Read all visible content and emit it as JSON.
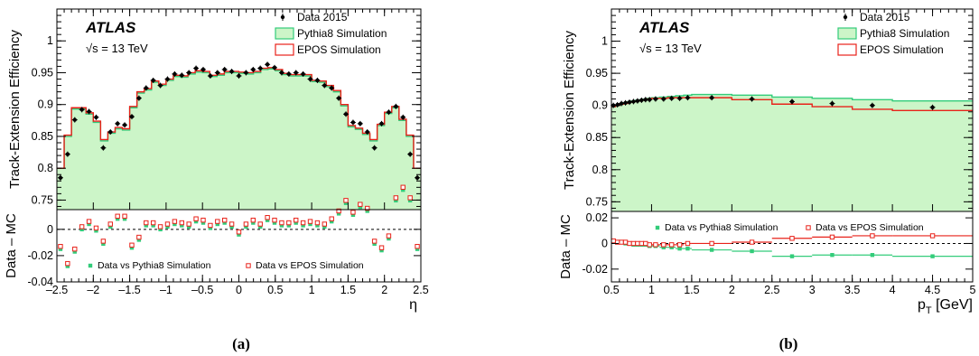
{
  "colors": {
    "pythia_fill": "#ccf5c8",
    "pythia_line": "#33cc7a",
    "epos_line": "#e8221a",
    "data": "#000000"
  },
  "chart_data": [
    {
      "type": "line",
      "caption": "(a)",
      "atlas": "ATLAS",
      "energy": "√s = 13 TeV",
      "ylabel": "Track-Extension Efficiency",
      "ratio_ylabel": "Data – MC",
      "xlabel": "η",
      "xlim": [
        -2.5,
        2.5
      ],
      "ylim": [
        0.735,
        1.05
      ],
      "ratio_ylim": [
        -0.04,
        0.015
      ],
      "xticks": [
        "-2.5",
        "-2",
        "-1.5",
        "-1",
        "-0.5",
        "0",
        "0.5",
        "1",
        "1.5",
        "2",
        "2.5"
      ],
      "yticks": [
        "0.75",
        "0.8",
        "0.85",
        "0.9",
        "0.95",
        "1"
      ],
      "ratio_yticks": [
        "-0.04",
        "-0.02",
        "0"
      ],
      "legend": {
        "data": "Data 2015",
        "pythia": "Pythia8 Simulation",
        "epos": "EPOS Simulation"
      },
      "ratio_legend": {
        "pythia": "Data vs Pythia8 Simulation",
        "epos": "Data vs EPOS Simulation"
      },
      "bin_edges": [
        -2.5,
        -2.4,
        -2.3,
        -2.2,
        -2.1,
        -2.0,
        -1.9,
        -1.8,
        -1.7,
        -1.6,
        -1.5,
        -1.4,
        -1.3,
        -1.2,
        -1.1,
        -1.0,
        -0.9,
        -0.8,
        -0.7,
        -0.6,
        -0.5,
        -0.4,
        -0.3,
        -0.2,
        -0.1,
        0.0,
        0.1,
        0.2,
        0.3,
        0.4,
        0.5,
        0.6,
        0.7,
        0.8,
        0.9,
        1.0,
        1.1,
        1.2,
        1.3,
        1.4,
        1.5,
        1.6,
        1.7,
        1.8,
        1.9,
        2.0,
        2.1,
        2.2,
        2.3,
        2.4,
        2.5
      ],
      "data": [
        0.785,
        0.822,
        0.876,
        0.892,
        0.889,
        0.88,
        0.832,
        0.857,
        0.87,
        0.868,
        0.881,
        0.91,
        0.926,
        0.938,
        0.93,
        0.94,
        0.948,
        0.946,
        0.95,
        0.957,
        0.955,
        0.945,
        0.95,
        0.955,
        0.952,
        0.945,
        0.95,
        0.955,
        0.957,
        0.963,
        0.958,
        0.95,
        0.948,
        0.95,
        0.948,
        0.94,
        0.938,
        0.93,
        0.926,
        0.91,
        0.885,
        0.872,
        0.87,
        0.857,
        0.832,
        0.87,
        0.888,
        0.897,
        0.88,
        0.822,
        0.785
      ],
      "pythia": [
        0.8,
        0.85,
        0.893,
        0.893,
        0.885,
        0.872,
        0.843,
        0.855,
        0.862,
        0.86,
        0.895,
        0.918,
        0.923,
        0.935,
        0.93,
        0.938,
        0.944,
        0.943,
        0.948,
        0.951,
        0.95,
        0.944,
        0.946,
        0.95,
        0.95,
        0.949,
        0.948,
        0.95,
        0.955,
        0.956,
        0.953,
        0.947,
        0.945,
        0.945,
        0.945,
        0.936,
        0.935,
        0.928,
        0.92,
        0.898,
        0.865,
        0.861,
        0.853,
        0.843,
        0.867,
        0.886,
        0.895,
        0.875,
        0.85,
        0.8
      ],
      "epos": [
        0.8,
        0.852,
        0.895,
        0.895,
        0.887,
        0.874,
        0.845,
        0.857,
        0.864,
        0.862,
        0.897,
        0.92,
        0.925,
        0.937,
        0.932,
        0.94,
        0.946,
        0.945,
        0.95,
        0.953,
        0.952,
        0.946,
        0.948,
        0.952,
        0.952,
        0.951,
        0.95,
        0.952,
        0.957,
        0.958,
        0.955,
        0.949,
        0.947,
        0.947,
        0.947,
        0.938,
        0.937,
        0.93,
        0.922,
        0.9,
        0.867,
        0.863,
        0.855,
        0.845,
        0.869,
        0.888,
        0.897,
        0.877,
        0.852,
        0.8
      ],
      "ratio_pythia": [
        -0.015,
        -0.028,
        -0.017,
        0.0,
        0.004,
        -0.001,
        -0.011,
        0.002,
        0.008,
        0.008,
        -0.014,
        -0.008,
        0.003,
        0.003,
        0.0,
        0.002,
        0.004,
        0.003,
        0.002,
        0.006,
        0.005,
        0.001,
        0.004,
        0.005,
        0.002,
        -0.004,
        0.002,
        0.005,
        0.002,
        0.007,
        0.005,
        0.003,
        0.003,
        0.005,
        0.003,
        0.004,
        0.003,
        0.002,
        0.006,
        0.012,
        0.02,
        0.011,
        0.017,
        0.014,
        -0.011,
        -0.016,
        -0.007,
        0.022,
        0.03,
        0.022,
        -0.015
      ],
      "ratio_epos": [
        -0.013,
        -0.026,
        -0.015,
        0.002,
        0.006,
        0.001,
        -0.009,
        0.004,
        0.01,
        0.01,
        -0.012,
        -0.006,
        0.005,
        0.005,
        0.002,
        0.004,
        0.006,
        0.005,
        0.004,
        0.008,
        0.007,
        0.003,
        0.006,
        0.007,
        0.004,
        -0.002,
        0.004,
        0.007,
        0.004,
        0.009,
        0.007,
        0.005,
        0.005,
        0.007,
        0.005,
        0.006,
        0.005,
        0.004,
        0.008,
        0.014,
        0.022,
        0.013,
        0.019,
        0.016,
        -0.009,
        -0.014,
        -0.005,
        0.024,
        0.032,
        0.024,
        -0.013
      ]
    },
    {
      "type": "line",
      "caption": "(b)",
      "atlas": "ATLAS",
      "energy": "√s = 13 TeV",
      "ylabel": "Track-Extension Efficiency",
      "ratio_ylabel": "Data – MC",
      "xlabel": "p",
      "xlabel_sub": "T",
      "xlabel_unit": " [GeV]",
      "xlim": [
        0.5,
        5
      ],
      "ylim": [
        0.735,
        1.05
      ],
      "ratio_ylim": [
        -0.03,
        0.025
      ],
      "xticks": [
        "0.5",
        "1",
        "1.5",
        "2",
        "2.5",
        "3",
        "3.5",
        "4",
        "4.5",
        "5"
      ],
      "yticks": [
        "0.75",
        "0.8",
        "0.85",
        "0.9",
        "0.95",
        "1"
      ],
      "ratio_yticks": [
        "-0.02",
        "0",
        "0.02"
      ],
      "legend": {
        "data": "Data 2015",
        "pythia": "Pythia8 Simulation",
        "epos": "EPOS Simulation"
      },
      "ratio_legend": {
        "pythia": "Data vs Pythia8 Simulation",
        "epos": "Data vs EPOS Simulation"
      },
      "bin_edges": [
        0.5,
        0.55,
        0.6,
        0.65,
        0.7,
        0.75,
        0.8,
        0.85,
        0.9,
        0.95,
        1.0,
        1.1,
        1.2,
        1.3,
        1.4,
        1.5,
        2.0,
        2.5,
        3.0,
        3.5,
        4.0,
        5.0
      ],
      "data": [
        0.9,
        0.901,
        0.903,
        0.904,
        0.905,
        0.906,
        0.907,
        0.908,
        0.909,
        0.909,
        0.91,
        0.91,
        0.911,
        0.911,
        0.912,
        0.912,
        0.91,
        0.906,
        0.903,
        0.9,
        0.897
      ],
      "pythia": [
        0.898,
        0.9,
        0.902,
        0.904,
        0.906,
        0.907,
        0.908,
        0.909,
        0.91,
        0.911,
        0.912,
        0.913,
        0.914,
        0.915,
        0.916,
        0.917,
        0.916,
        0.913,
        0.911,
        0.909,
        0.907
      ],
      "epos": [
        0.898,
        0.9,
        0.902,
        0.903,
        0.905,
        0.906,
        0.907,
        0.908,
        0.909,
        0.91,
        0.911,
        0.911,
        0.912,
        0.912,
        0.912,
        0.912,
        0.909,
        0.902,
        0.898,
        0.894,
        0.892
      ],
      "ratio_pythia": [
        0.002,
        0.001,
        0.001,
        0.0,
        0.0,
        -0.001,
        -0.001,
        -0.001,
        -0.001,
        -0.002,
        -0.002,
        -0.003,
        -0.003,
        -0.004,
        -0.004,
        -0.005,
        -0.006,
        -0.01,
        -0.009,
        -0.009,
        -0.01
      ],
      "ratio_epos": [
        0.002,
        0.001,
        0.001,
        0.001,
        0.0,
        0.0,
        0.0,
        0.0,
        0.0,
        -0.001,
        -0.001,
        -0.001,
        -0.001,
        -0.001,
        0.0,
        0.0,
        0.001,
        0.004,
        0.005,
        0.006,
        0.006
      ]
    }
  ]
}
